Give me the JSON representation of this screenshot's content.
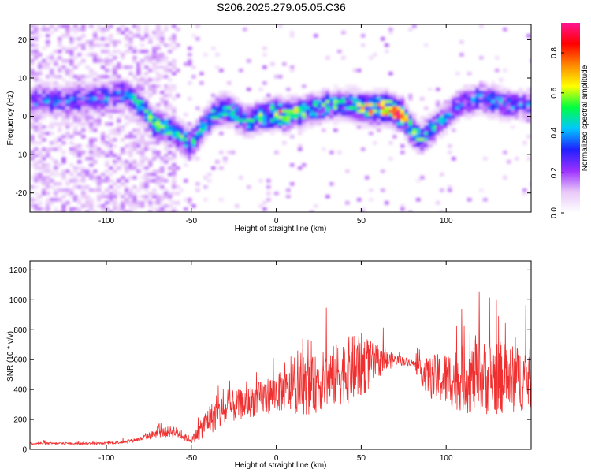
{
  "title": "S206.2025.279.05.05.C36",
  "chart_data": [
    {
      "type": "heatmap",
      "xlabel": "Height of straight line (km)",
      "ylabel": "Frequency (Hz)",
      "xlim": [
        -145,
        150
      ],
      "ylim": [
        -25,
        24
      ],
      "xticks": [
        -100,
        -50,
        0,
        50,
        100
      ],
      "yticks": [
        -20,
        -10,
        0,
        10,
        20
      ],
      "colorbar": {
        "label": "Normalized spectral amplitude",
        "range": [
          0,
          0.95
        ],
        "ticks": [
          0.0,
          0.2,
          0.4,
          0.6,
          0.8
        ],
        "colors": [
          "#ffffff",
          "#e8c8f8",
          "#9b30ff",
          "#2020ff",
          "#00c8ff",
          "#00ff40",
          "#ffff00",
          "#ff8800",
          "#ff0000",
          "#ff1493"
        ]
      },
      "ridge": {
        "x": [
          -140,
          -120,
          -100,
          -90,
          -80,
          -72,
          -65,
          -58,
          -50,
          -45,
          -40,
          -35,
          -30,
          -25,
          -20,
          -15,
          -10,
          -5,
          0,
          5,
          10,
          15,
          20,
          25,
          30,
          35,
          40,
          45,
          50,
          55,
          60,
          65,
          70,
          75,
          80,
          85,
          90,
          95,
          100,
          105,
          110,
          115,
          120,
          125,
          130,
          135,
          140,
          145
        ],
        "freq": [
          4,
          4,
          5,
          6,
          3,
          -2,
          -3,
          -5,
          -7,
          -4,
          -1,
          1,
          2,
          1,
          -1,
          -1,
          0,
          0,
          1,
          0,
          1,
          1,
          2,
          2,
          3,
          3,
          3,
          3,
          2,
          2,
          2,
          2,
          1,
          0,
          -4,
          -6,
          -4,
          -2,
          0,
          2,
          4,
          4,
          5,
          4,
          4,
          3,
          3,
          3
        ],
        "peak": [
          0.35,
          0.35,
          0.35,
          0.4,
          0.45,
          0.5,
          0.5,
          0.5,
          0.45,
          0.4,
          0.45,
          0.5,
          0.5,
          0.45,
          0.4,
          0.5,
          0.5,
          0.55,
          0.75,
          0.6,
          0.55,
          0.55,
          0.5,
          0.5,
          0.5,
          0.5,
          0.45,
          0.5,
          0.6,
          0.7,
          0.7,
          0.75,
          0.85,
          0.6,
          0.5,
          0.5,
          0.45,
          0.4,
          0.35,
          0.35,
          0.35,
          0.35,
          0.35,
          0.4,
          0.4,
          0.35,
          0.35,
          0.35
        ]
      }
    },
    {
      "type": "line",
      "xlabel": "Height of straight line (km)",
      "ylabel": "SNR (10 * v/v)",
      "xlim": [
        -145,
        150
      ],
      "ylim": [
        0,
        1260
      ],
      "xticks": [
        -100,
        -50,
        0,
        50,
        100
      ],
      "yticks": [
        0,
        200,
        400,
        600,
        800,
        1000,
        1200
      ],
      "color": "#f03030",
      "envelope": {
        "x": [
          -145,
          -100,
          -90,
          -80,
          -70,
          -60,
          -50,
          -45,
          -40,
          -35,
          -30,
          -25,
          -20,
          -10,
          0,
          10,
          20,
          30,
          40,
          50,
          60,
          70,
          80,
          85,
          90,
          100,
          110,
          120,
          130,
          140,
          150
        ],
        "mean": [
          40,
          40,
          50,
          70,
          110,
          120,
          60,
          120,
          200,
          230,
          260,
          290,
          300,
          340,
          380,
          390,
          420,
          470,
          520,
          560,
          580,
          600,
          580,
          520,
          480,
          470,
          470,
          480,
          480,
          470,
          470
        ],
        "spread": [
          15,
          15,
          20,
          30,
          60,
          80,
          40,
          120,
          200,
          220,
          230,
          220,
          200,
          230,
          260,
          300,
          380,
          400,
          450,
          450,
          200,
          80,
          40,
          150,
          280,
          380,
          450,
          500,
          500,
          450,
          400
        ]
      }
    }
  ]
}
